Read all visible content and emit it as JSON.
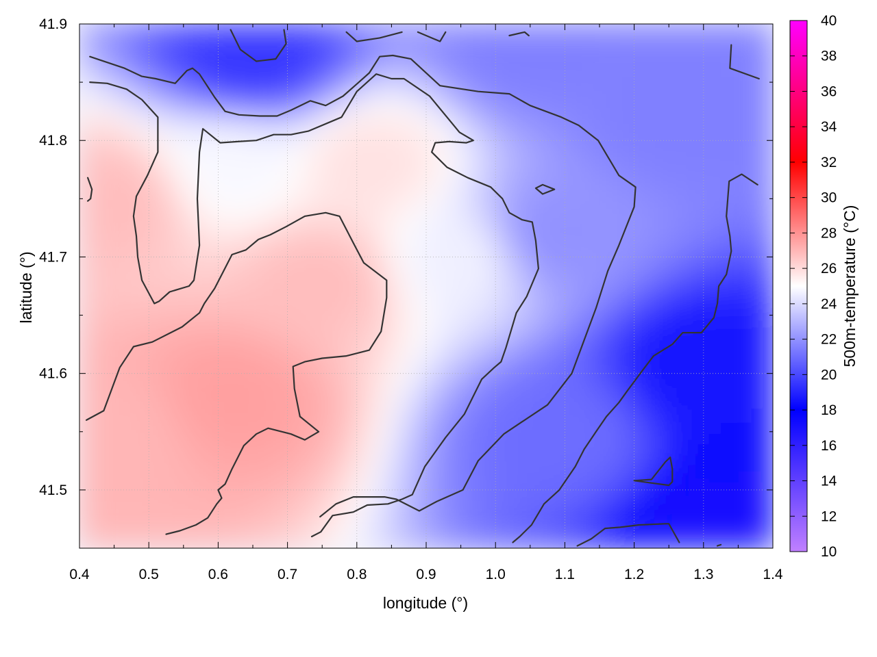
{
  "chart_data": {
    "type": "heatmap",
    "title": "",
    "xlabel": "longitude (°)",
    "ylabel": "latitude (°)",
    "xlim": [
      0.4,
      1.4
    ],
    "ylim": [
      41.45,
      41.9
    ],
    "x_ticks": [
      0.4,
      0.5,
      0.6,
      0.7,
      0.8,
      0.9,
      1.0,
      1.1,
      1.2,
      1.3,
      1.4
    ],
    "x_tick_labels": [
      "0.4",
      "0.5",
      "0.6",
      "0.7",
      "0.8",
      "0.9",
      "1.0",
      "1.1",
      "1.2",
      "1.3",
      "1.4"
    ],
    "y_ticks": [
      41.5,
      41.6,
      41.7,
      41.8,
      41.9
    ],
    "y_tick_labels": [
      "41.5",
      "41.6",
      "41.7",
      "41.8",
      "41.9"
    ],
    "grid": true,
    "colorbar": {
      "label": "500m-temperature (°C)",
      "range": [
        10,
        40
      ],
      "ticks": [
        10,
        12,
        14,
        16,
        18,
        20,
        22,
        24,
        26,
        28,
        30,
        32,
        34,
        36,
        38,
        40
      ],
      "tick_labels": [
        "10",
        "12",
        "14",
        "16",
        "18",
        "20",
        "22",
        "24",
        "26",
        "28",
        "30",
        "32",
        "34",
        "36",
        "38",
        "40"
      ],
      "stops": [
        {
          "value": 10,
          "color": "#c080ff"
        },
        {
          "value": 18,
          "color": "#0000ff"
        },
        {
          "value": 25,
          "color": "#ffffff"
        },
        {
          "value": 32,
          "color": "#ff0000"
        },
        {
          "value": 40,
          "color": "#ff00ff"
        }
      ]
    },
    "temperature_samples": [
      {
        "lon": 0.45,
        "lat": 41.75,
        "temp": 26.8
      },
      {
        "lon": 0.45,
        "lat": 41.55,
        "temp": 27.0
      },
      {
        "lon": 0.62,
        "lat": 41.58,
        "temp": 27.6
      },
      {
        "lon": 0.75,
        "lat": 41.68,
        "temp": 26.8
      },
      {
        "lon": 0.82,
        "lat": 41.78,
        "temp": 25.8
      },
      {
        "lon": 0.62,
        "lat": 41.78,
        "temp": 24.8
      },
      {
        "lon": 0.95,
        "lat": 41.7,
        "temp": 24.6
      },
      {
        "lon": 1.08,
        "lat": 41.72,
        "temp": 22.0
      },
      {
        "lon": 1.25,
        "lat": 41.82,
        "temp": 21.5
      },
      {
        "lon": 1.3,
        "lat": 41.6,
        "temp": 18.5
      },
      {
        "lon": 1.35,
        "lat": 41.47,
        "temp": 17.0
      },
      {
        "lon": 0.65,
        "lat": 41.87,
        "temp": 19.5
      },
      {
        "lon": 1.05,
        "lat": 41.88,
        "temp": 21.5
      },
      {
        "lon": 1.1,
        "lat": 41.55,
        "temp": 21.0
      }
    ],
    "contours": [
      {
        "points": [
          [
            0.415,
            41.872
          ],
          [
            0.465,
            41.862
          ],
          [
            0.49,
            41.855
          ],
          [
            0.51,
            41.853
          ],
          [
            0.538,
            41.849
          ],
          [
            0.555,
            41.86
          ],
          [
            0.563,
            41.862
          ],
          [
            0.573,
            41.857
          ],
          [
            0.595,
            41.837
          ],
          [
            0.61,
            41.825
          ],
          [
            0.63,
            41.822
          ],
          [
            0.66,
            41.821
          ],
          [
            0.685,
            41.821
          ],
          [
            0.705,
            41.826
          ],
          [
            0.733,
            41.834
          ],
          [
            0.755,
            41.83
          ],
          [
            0.78,
            41.838
          ],
          [
            0.803,
            41.85
          ],
          [
            0.818,
            41.858
          ],
          [
            0.833,
            41.872
          ],
          [
            0.852,
            41.873
          ],
          [
            0.878,
            41.87
          ],
          [
            0.92,
            41.847
          ],
          [
            0.975,
            41.842
          ],
          [
            1.02,
            41.84
          ],
          [
            1.05,
            41.83
          ],
          [
            1.095,
            41.82
          ],
          [
            1.12,
            41.813
          ],
          [
            1.148,
            41.8
          ],
          [
            1.165,
            41.783
          ],
          [
            1.178,
            41.77
          ],
          [
            1.202,
            41.76
          ],
          [
            1.2,
            41.743
          ],
          [
            1.178,
            41.71
          ],
          [
            1.162,
            41.688
          ],
          [
            1.145,
            41.656
          ],
          [
            1.11,
            41.6
          ],
          [
            1.075,
            41.573
          ],
          [
            1.037,
            41.558
          ],
          [
            1.012,
            41.548
          ],
          [
            0.975,
            41.525
          ],
          [
            0.953,
            41.5
          ],
          [
            0.915,
            41.49
          ],
          [
            0.89,
            41.482
          ],
          [
            0.857,
            41.492
          ],
          [
            0.84,
            41.494
          ],
          [
            0.795,
            41.494
          ],
          [
            0.77,
            41.488
          ],
          [
            0.747,
            41.477
          ]
        ]
      },
      {
        "points": [
          [
            0.415,
            41.85
          ],
          [
            0.44,
            41.849
          ],
          [
            0.468,
            41.844
          ],
          [
            0.49,
            41.835
          ],
          [
            0.513,
            41.82
          ],
          [
            0.513,
            41.8
          ],
          [
            0.513,
            41.79
          ],
          [
            0.498,
            41.77
          ],
          [
            0.482,
            41.752
          ],
          [
            0.478,
            41.735
          ],
          [
            0.482,
            41.718
          ],
          [
            0.484,
            41.7
          ],
          [
            0.49,
            41.68
          ],
          [
            0.508,
            41.66
          ],
          [
            0.515,
            41.662
          ],
          [
            0.53,
            41.67
          ],
          [
            0.558,
            41.675
          ],
          [
            0.565,
            41.68
          ],
          [
            0.573,
            41.71
          ],
          [
            0.57,
            41.75
          ],
          [
            0.573,
            41.79
          ],
          [
            0.578,
            41.81
          ],
          [
            0.603,
            41.798
          ],
          [
            0.628,
            41.799
          ],
          [
            0.655,
            41.8
          ],
          [
            0.68,
            41.805
          ],
          [
            0.705,
            41.805
          ],
          [
            0.73,
            41.808
          ],
          [
            0.778,
            41.82
          ],
          [
            0.8,
            41.842
          ],
          [
            0.828,
            41.857
          ],
          [
            0.85,
            41.853
          ],
          [
            0.868,
            41.853
          ],
          [
            0.905,
            41.838
          ],
          [
            0.93,
            41.82
          ],
          [
            0.948,
            41.807
          ],
          [
            0.968,
            41.8
          ],
          [
            0.958,
            41.798
          ],
          [
            0.933,
            41.799
          ],
          [
            0.913,
            41.798
          ],
          [
            0.908,
            41.79
          ],
          [
            0.93,
            41.777
          ],
          [
            0.96,
            41.768
          ],
          [
            0.993,
            41.76
          ],
          [
            1.01,
            41.75
          ],
          [
            1.02,
            41.738
          ],
          [
            1.038,
            41.732
          ],
          [
            1.053,
            41.73
          ],
          [
            1.058,
            41.714
          ],
          [
            1.062,
            41.69
          ],
          [
            1.045,
            41.666
          ],
          [
            1.03,
            41.652
          ],
          [
            1.015,
            41.622
          ],
          [
            1.008,
            41.61
          ],
          [
            0.998,
            41.605
          ],
          [
            0.98,
            41.595
          ],
          [
            0.955,
            41.565
          ],
          [
            0.928,
            41.545
          ],
          [
            0.898,
            41.52
          ],
          [
            0.88,
            41.496
          ],
          [
            0.865,
            41.492
          ],
          [
            0.845,
            41.488
          ],
          [
            0.815,
            41.487
          ],
          [
            0.795,
            41.481
          ],
          [
            0.765,
            41.478
          ],
          [
            0.748,
            41.464
          ],
          [
            0.735,
            41.46
          ]
        ]
      },
      {
        "points": [
          [
            0.41,
            41.56
          ],
          [
            0.435,
            41.568
          ],
          [
            0.458,
            41.605
          ],
          [
            0.478,
            41.623
          ],
          [
            0.505,
            41.627
          ],
          [
            0.548,
            41.64
          ],
          [
            0.573,
            41.652
          ],
          [
            0.58,
            41.66
          ],
          [
            0.595,
            41.673
          ],
          [
            0.607,
            41.687
          ],
          [
            0.62,
            41.702
          ],
          [
            0.64,
            41.706
          ],
          [
            0.658,
            41.715
          ],
          [
            0.675,
            41.719
          ],
          [
            0.698,
            41.726
          ],
          [
            0.725,
            41.735
          ],
          [
            0.755,
            41.738
          ],
          [
            0.775,
            41.735
          ],
          [
            0.795,
            41.712
          ],
          [
            0.81,
            41.695
          ],
          [
            0.843,
            41.68
          ],
          [
            0.843,
            41.665
          ],
          [
            0.835,
            41.636
          ],
          [
            0.818,
            41.62
          ],
          [
            0.785,
            41.615
          ],
          [
            0.75,
            41.613
          ],
          [
            0.725,
            41.61
          ],
          [
            0.708,
            41.606
          ],
          [
            0.71,
            41.587
          ],
          [
            0.718,
            41.563
          ],
          [
            0.745,
            41.55
          ],
          [
            0.725,
            41.543
          ],
          [
            0.705,
            41.548
          ],
          [
            0.672,
            41.553
          ],
          [
            0.655,
            41.548
          ],
          [
            0.637,
            41.538
          ],
          [
            0.62,
            41.518
          ],
          [
            0.61,
            41.505
          ],
          [
            0.6,
            41.5
          ],
          [
            0.605,
            41.493
          ],
          [
            0.598,
            41.488
          ],
          [
            0.585,
            41.476
          ],
          [
            0.568,
            41.47
          ],
          [
            0.545,
            41.465
          ],
          [
            0.525,
            41.462
          ]
        ]
      },
      {
        "points": [
          [
            0.618,
            41.895
          ],
          [
            0.632,
            41.878
          ],
          [
            0.655,
            41.868
          ],
          [
            0.683,
            41.87
          ],
          [
            0.698,
            41.883
          ],
          [
            0.695,
            41.895
          ]
        ]
      },
      {
        "points": [
          [
            0.785,
            41.893
          ],
          [
            0.8,
            41.885
          ],
          [
            0.833,
            41.888
          ],
          [
            0.865,
            41.893
          ]
        ]
      },
      {
        "points": [
          [
            0.888,
            41.893
          ],
          [
            0.92,
            41.885
          ],
          [
            0.928,
            41.893
          ]
        ]
      },
      {
        "points": [
          [
            1.02,
            41.89
          ],
          [
            1.042,
            41.893
          ],
          [
            1.048,
            41.89
          ]
        ]
      },
      {
        "points": [
          [
            1.34,
            41.882
          ],
          [
            1.338,
            41.862
          ],
          [
            1.38,
            41.853
          ]
        ]
      },
      {
        "points": [
          [
            1.058,
            41.759
          ],
          [
            1.068,
            41.762
          ],
          [
            1.085,
            41.758
          ],
          [
            1.068,
            41.754
          ],
          [
            1.058,
            41.759
          ]
        ]
      },
      {
        "points": [
          [
            0.412,
            41.768
          ],
          [
            0.418,
            41.758
          ],
          [
            0.416,
            41.75
          ],
          [
            0.412,
            41.748
          ]
        ]
      },
      {
        "points": [
          [
            1.378,
            41.762
          ],
          [
            1.355,
            41.771
          ],
          [
            1.337,
            41.765
          ],
          [
            1.333,
            41.735
          ],
          [
            1.338,
            41.718
          ],
          [
            1.34,
            41.705
          ],
          [
            1.333,
            41.685
          ],
          [
            1.322,
            41.675
          ],
          [
            1.32,
            41.66
          ],
          [
            1.315,
            41.648
          ],
          [
            1.297,
            41.635
          ],
          [
            1.27,
            41.635
          ],
          [
            1.255,
            41.625
          ],
          [
            1.228,
            41.615
          ],
          [
            1.215,
            41.605
          ],
          [
            1.19,
            41.585
          ],
          [
            1.178,
            41.575
          ],
          [
            1.16,
            41.563
          ],
          [
            1.145,
            41.55
          ],
          [
            1.128,
            41.535
          ],
          [
            1.115,
            41.52
          ],
          [
            1.092,
            41.5
          ],
          [
            1.07,
            41.488
          ],
          [
            1.052,
            41.47
          ],
          [
            1.035,
            41.46
          ],
          [
            1.025,
            41.455
          ]
        ]
      },
      {
        "points": [
          [
            1.2,
            41.508
          ],
          [
            1.225,
            41.509
          ],
          [
            1.245,
            41.524
          ],
          [
            1.252,
            41.528
          ],
          [
            1.255,
            41.518
          ],
          [
            1.255,
            41.507
          ],
          [
            1.25,
            41.504
          ],
          [
            1.2,
            41.508
          ]
        ]
      },
      {
        "points": [
          [
            1.118,
            41.452
          ],
          [
            1.138,
            41.458
          ],
          [
            1.158,
            41.467
          ],
          [
            1.18,
            41.468
          ],
          [
            1.207,
            41.47
          ],
          [
            1.245,
            41.471
          ],
          [
            1.25,
            41.471
          ],
          [
            1.265,
            41.455
          ]
        ]
      },
      {
        "points": [
          [
            1.32,
            41.452
          ],
          [
            1.325,
            41.453
          ]
        ]
      }
    ]
  }
}
